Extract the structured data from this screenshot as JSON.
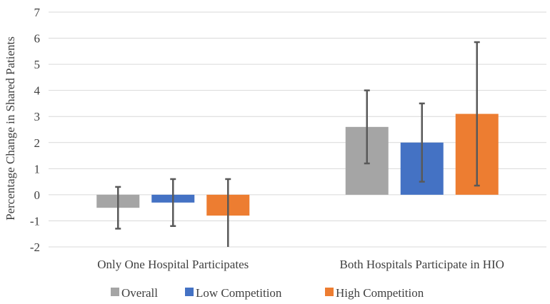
{
  "chart_data": {
    "type": "bar",
    "title": "",
    "xlabel": "",
    "ylabel": "Percentage Change in Shared Patients",
    "ylim": [
      -2,
      7
    ],
    "yticks": [
      -2,
      -1,
      0,
      1,
      2,
      3,
      4,
      5,
      6,
      7
    ],
    "grid": "horizontal",
    "legend_position": "bottom",
    "categories": [
      "Only One Hospital Participates",
      "Both Hospitals Participate in HIO"
    ],
    "series": [
      {
        "name": "Overall",
        "color": "#a5a5a5",
        "values": [
          -0.5,
          2.6
        ],
        "error_low": [
          -1.3,
          1.2
        ],
        "error_high": [
          0.3,
          4.0
        ]
      },
      {
        "name": "Low Competition",
        "color": "#4472c4",
        "values": [
          -0.3,
          2.0
        ],
        "error_low": [
          -1.2,
          0.5
        ],
        "error_high": [
          0.6,
          3.5
        ]
      },
      {
        "name": "High Competition",
        "color": "#ed7d31",
        "values": [
          -0.8,
          3.1
        ],
        "error_low": [
          -2.0,
          0.35
        ],
        "error_high": [
          0.6,
          5.85
        ]
      }
    ],
    "error_bar_color": "#595959",
    "gridline_color": "#d9d9d9"
  }
}
